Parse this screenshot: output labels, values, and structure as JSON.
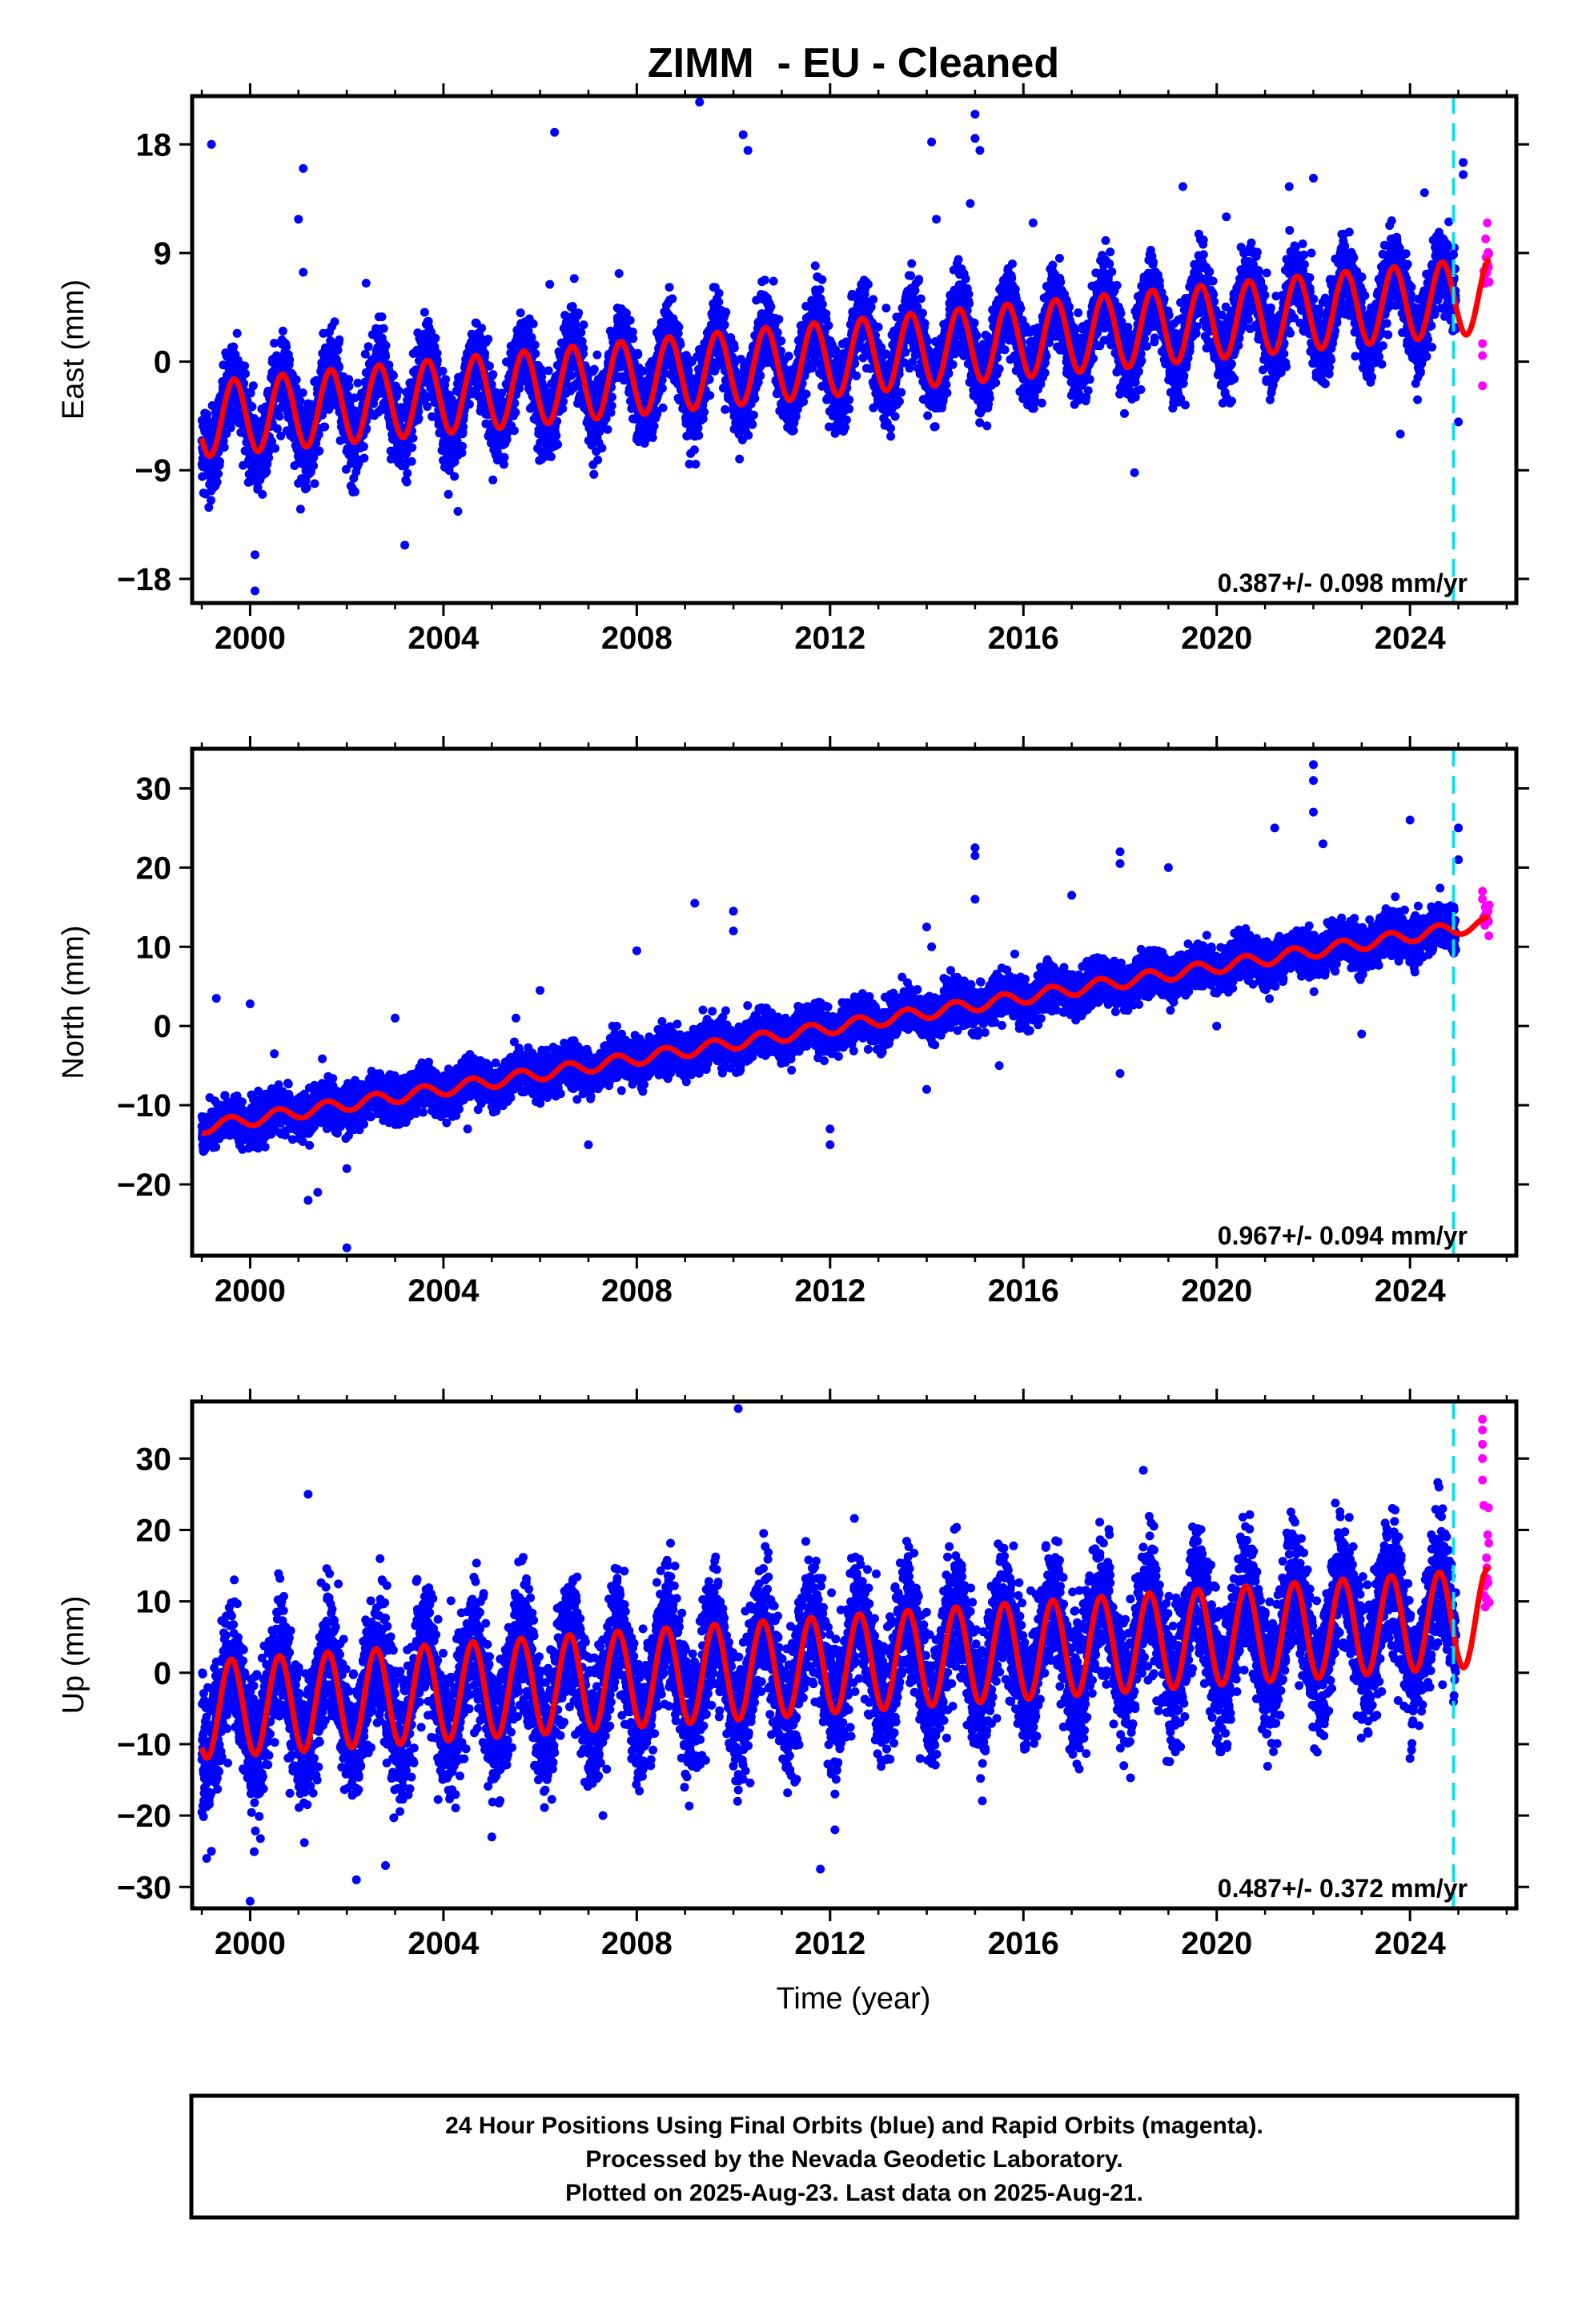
{
  "figure": {
    "title": "ZIMM  - EU - Cleaned",
    "xlabel": "Time (year)",
    "caption": [
      "24 Hour Positions Using Final Orbits (blue) and Rapid Orbits (magenta).",
      "Processed by the Nevada Geodetic Laboratory.",
      "Plotted on 2025-Aug-23. Last data on 2025-Aug-21."
    ]
  },
  "colors": {
    "final_orbits": "#0000ff",
    "rapid_orbits": "#ff00ff",
    "model_fit": "#ff0000",
    "marker_line": "#00e5ee",
    "frame": "#000000"
  },
  "chart_data": [
    {
      "type": "scatter",
      "ylabel": "East (mm)",
      "xlim": [
        1998.8,
        2026.2
      ],
      "ylim": [
        -20,
        22
      ],
      "xticks": [
        "2000",
        "2004",
        "2008",
        "2012",
        "2016",
        "2020",
        "2024"
      ],
      "yticks": [
        "18",
        "9",
        "0",
        "-9",
        "-18"
      ],
      "yticks_display": [
        "18",
        "9",
        "0",
        "−9",
        "−18"
      ],
      "rate_label": "0.387+/- 0.098 mm/yr",
      "vertical_marker_x": 2024.9,
      "model": {
        "start_year": 1999.0,
        "value_at_start": -4.8,
        "rate": 0.387,
        "annual_amplitude": 3.1,
        "annual_peak_month": 8.0
      },
      "scatter_sigma": 1.6,
      "series": [
        {
          "name": "Final Orbits",
          "color": "#0000ff",
          "x_range": [
            1999.0,
            2024.95
          ]
        },
        {
          "name": "Rapid Orbits",
          "color": "#ff00ff",
          "x_range": [
            2024.95,
            2025.64
          ]
        },
        {
          "name": "Fit",
          "color": "#ff0000"
        }
      ],
      "outliers": [
        [
          1999.2,
          18
        ],
        [
          2000.1,
          -16
        ],
        [
          2000.1,
          -19
        ],
        [
          2001.0,
          11.8
        ],
        [
          2001.1,
          16
        ],
        [
          2001.1,
          7.4
        ],
        [
          2002.4,
          6.5
        ],
        [
          2003.2,
          -15.2
        ],
        [
          2004.3,
          -12.4
        ],
        [
          2006.3,
          19
        ],
        [
          2006.2,
          6.4
        ],
        [
          2009.3,
          21.5
        ],
        [
          2010.2,
          18.8
        ],
        [
          2010.3,
          17.5
        ],
        [
          2014.1,
          18.2
        ],
        [
          2014.2,
          11.8
        ],
        [
          2014.9,
          13.1
        ],
        [
          2015.0,
          20.5
        ],
        [
          2015.0,
          18.5
        ],
        [
          2015.1,
          17.5
        ],
        [
          2016.2,
          11.5
        ],
        [
          2018.3,
          -9.2
        ],
        [
          2019.3,
          14.5
        ],
        [
          2020.2,
          12
        ],
        [
          2021.5,
          14.5
        ],
        [
          2022.0,
          15.2
        ],
        [
          2023.8,
          -6
        ],
        [
          2024.3,
          14
        ],
        [
          2025.1,
          16.5
        ],
        [
          2025.1,
          15.5
        ],
        [
          2025.0,
          -5
        ]
      ],
      "rapid_extremes": [
        [
          2025.5,
          -2
        ],
        [
          2025.5,
          0.5
        ],
        [
          2025.5,
          1.5
        ]
      ]
    },
    {
      "type": "scatter",
      "ylabel": "North (mm)",
      "xlim": [
        1998.8,
        2026.2
      ],
      "ylim": [
        -29,
        35
      ],
      "xticks": [
        "2000",
        "2004",
        "2008",
        "2012",
        "2016",
        "2020",
        "2024"
      ],
      "yticks": [
        "30",
        "20",
        "10",
        "0",
        "-10",
        "-20"
      ],
      "yticks_display": [
        "30",
        "20",
        "10",
        "0",
        "−10",
        "−20"
      ],
      "rate_label": "0.967+/- 0.094 mm/yr",
      "vertical_marker_x": 2024.9,
      "model": {
        "start_year": 1999.0,
        "value_at_start": -12.8,
        "rate": 0.967,
        "annual_amplitude": 0.8,
        "annual_peak_month": 7.0
      },
      "scatter_sigma": 1.3,
      "series": [
        {
          "name": "Final Orbits",
          "color": "#0000ff",
          "x_range": [
            1999.0,
            2024.95
          ]
        },
        {
          "name": "Rapid Orbits",
          "color": "#ff00ff",
          "x_range": [
            2024.95,
            2025.64
          ]
        },
        {
          "name": "Fit",
          "color": "#ff0000"
        }
      ],
      "outliers": [
        [
          1999.3,
          3.5
        ],
        [
          2000.0,
          2.8
        ],
        [
          2000.5,
          -3.5
        ],
        [
          2001.2,
          -22
        ],
        [
          2001.4,
          -21
        ],
        [
          2002.0,
          -28
        ],
        [
          2002.0,
          -18
        ],
        [
          2003.0,
          1
        ],
        [
          2004.5,
          -13
        ],
        [
          2005.5,
          1
        ],
        [
          2006.0,
          4.5
        ],
        [
          2007.0,
          -15
        ],
        [
          2007.5,
          0
        ],
        [
          2008.0,
          9.5
        ],
        [
          2009.2,
          15.5
        ],
        [
          2010.0,
          14.5
        ],
        [
          2010.0,
          12
        ],
        [
          2012.0,
          -15
        ],
        [
          2012.0,
          -13
        ],
        [
          2013.0,
          0
        ],
        [
          2014.0,
          12.5
        ],
        [
          2014.1,
          10
        ],
        [
          2014.0,
          -8
        ],
        [
          2015.0,
          22.5
        ],
        [
          2015.0,
          21.5
        ],
        [
          2015.0,
          16
        ],
        [
          2015.5,
          -5
        ],
        [
          2017.0,
          16.5
        ],
        [
          2018.0,
          22
        ],
        [
          2018.0,
          20.5
        ],
        [
          2019.0,
          20
        ],
        [
          2018.0,
          -6
        ],
        [
          2020.0,
          0
        ],
        [
          2021.2,
          25
        ],
        [
          2022.0,
          33
        ],
        [
          2022.0,
          31
        ],
        [
          2022.0,
          27
        ],
        [
          2022.2,
          23
        ],
        [
          2023.0,
          -1
        ],
        [
          2024.0,
          26
        ],
        [
          2025.0,
          25
        ],
        [
          2025.0,
          21
        ]
      ],
      "rapid_extremes": [
        [
          2025.5,
          17
        ],
        [
          2025.5,
          16
        ]
      ]
    },
    {
      "type": "scatter",
      "ylabel": "Up (mm)",
      "xlim": [
        1998.8,
        2026.2
      ],
      "ylim": [
        -33,
        38
      ],
      "xticks": [
        "2000",
        "2004",
        "2008",
        "2012",
        "2016",
        "2020",
        "2024"
      ],
      "yticks": [
        "30",
        "20",
        "10",
        "0",
        "-10",
        "-20",
        "-30"
      ],
      "yticks_display": [
        "30",
        "20",
        "10",
        "0",
        "−10",
        "−20",
        "−30"
      ],
      "rate_label": "0.487+/- 0.372 mm/yr",
      "vertical_marker_x": 2024.9,
      "model": {
        "start_year": 1999.0,
        "value_at_start": -5.2,
        "rate": 0.487,
        "annual_amplitude": 6.8,
        "annual_peak_month": 7.3
      },
      "scatter_sigma": 4.5,
      "series": [
        {
          "name": "Final Orbits",
          "color": "#0000ff",
          "x_range": [
            1999.0,
            2024.95
          ]
        },
        {
          "name": "Rapid Orbits",
          "color": "#ff00ff",
          "x_range": [
            2024.95,
            2025.64
          ]
        },
        {
          "name": "Fit",
          "color": "#ff0000"
        }
      ],
      "outliers": [
        [
          1999.1,
          -26
        ],
        [
          1999.2,
          -25
        ],
        [
          2000.0,
          -32
        ],
        [
          2001.2,
          25
        ],
        [
          2002.2,
          -29
        ],
        [
          2002.8,
          -27
        ],
        [
          2005.0,
          -23
        ],
        [
          2007.3,
          -20
        ],
        [
          2010.1,
          37
        ],
        [
          2011.8,
          -27.5
        ],
        [
          2012.1,
          -22
        ],
        [
          2024.0,
          -12
        ],
        [
          2024.6,
          26
        ]
      ],
      "rapid_extremes": [
        [
          2025.5,
          35.5
        ],
        [
          2025.5,
          34
        ],
        [
          2025.5,
          32
        ],
        [
          2025.5,
          30
        ],
        [
          2025.5,
          27
        ]
      ]
    }
  ]
}
